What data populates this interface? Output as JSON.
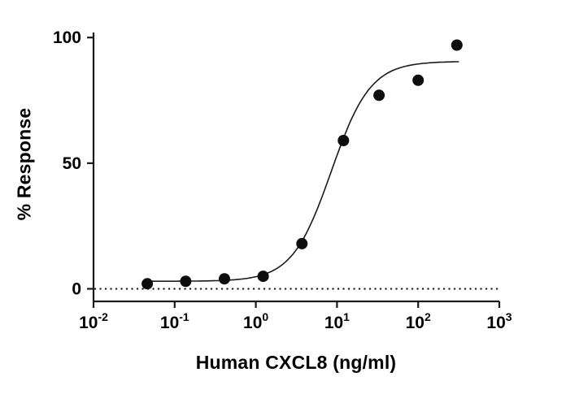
{
  "chart_data": {
    "type": "scatter",
    "title": "",
    "xlabel": "Human CXCL8 (ng/ml)",
    "ylabel": "% Response",
    "x_scale": "log10",
    "xlog_range": [
      -2,
      3
    ],
    "ylim": [
      -5,
      102
    ],
    "grid": false,
    "legend": null,
    "y_ticks": [
      {
        "value": 0,
        "label": "0"
      },
      {
        "value": 50,
        "label": "50"
      },
      {
        "value": 100,
        "label": "100"
      }
    ],
    "x_ticks": [
      {
        "value": 0.01,
        "mantissa": "10",
        "exponent": "-2"
      },
      {
        "value": 0.1,
        "mantissa": "10",
        "exponent": "-1"
      },
      {
        "value": 1,
        "mantissa": "10",
        "exponent": "0"
      },
      {
        "value": 10,
        "mantissa": "10",
        "exponent": "1"
      },
      {
        "value": 100,
        "mantissa": "10",
        "exponent": "2"
      },
      {
        "value": 1000,
        "mantissa": "10",
        "exponent": "3"
      }
    ],
    "points": [
      {
        "x": 0.046,
        "y": 2
      },
      {
        "x": 0.137,
        "y": 3
      },
      {
        "x": 0.41,
        "y": 4
      },
      {
        "x": 1.23,
        "y": 5
      },
      {
        "x": 3.7,
        "y": 18
      },
      {
        "x": 12,
        "y": 59
      },
      {
        "x": 33,
        "y": 77
      },
      {
        "x": 100,
        "y": 83
      },
      {
        "x": 300,
        "y": 97
      }
    ],
    "fit": {
      "model": "four_parameter_logistic",
      "bottom": 3,
      "top": 90.5,
      "ec50": 8.5,
      "hill": 1.8,
      "x_start": 0.046,
      "x_end": 330
    },
    "zero_line": {
      "y": 0,
      "style": "dotted"
    },
    "colors": {
      "points": "#0d0d0d",
      "curve": "#1a1a1a",
      "axis": "#1a1a1a",
      "text": "#000000"
    }
  }
}
